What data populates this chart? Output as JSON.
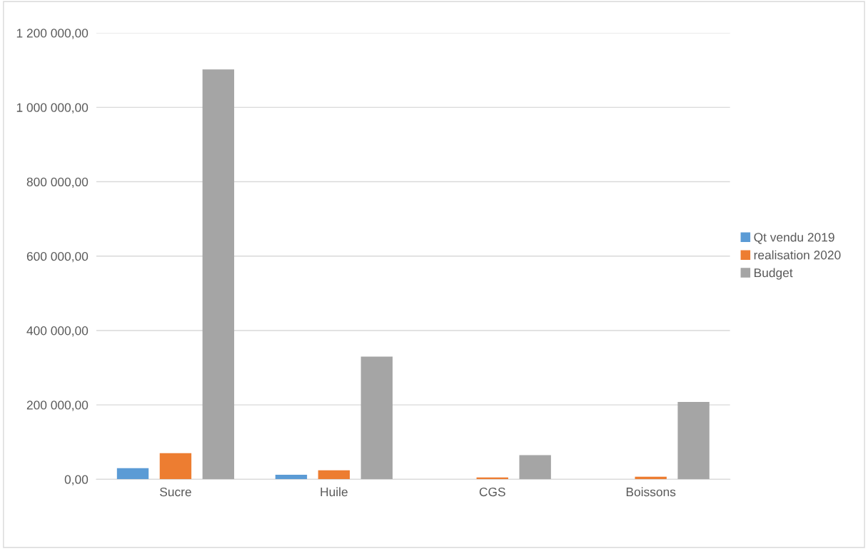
{
  "chart_data": {
    "type": "bar",
    "categories": [
      "Sucre",
      "Huile",
      "CGS",
      "Boissons"
    ],
    "series": [
      {
        "name": "Qt vendu 2019",
        "color": "#5b9bd5",
        "values": [
          30000,
          12000,
          0,
          0
        ]
      },
      {
        "name": "realisation 2020",
        "color": "#ed7d31",
        "values": [
          70000,
          24000,
          5000,
          7000
        ]
      },
      {
        "name": "Budget",
        "color": "#a5a5a5",
        "values": [
          1102000,
          330000,
          65000,
          208000
        ]
      }
    ],
    "ylim": [
      0,
      1200000
    ],
    "yticks": [
      {
        "value": 0,
        "label": "0,00"
      },
      {
        "value": 200000,
        "label": "200 000,00"
      },
      {
        "value": 400000,
        "label": "400 000,00"
      },
      {
        "value": 600000,
        "label": "600 000,00"
      },
      {
        "value": 800000,
        "label": "800 000,00"
      },
      {
        "value": 1000000,
        "label": "1 000 000,00"
      },
      {
        "value": 1200000,
        "label": "1 200 000,00"
      }
    ],
    "grid": "y",
    "legend": "right"
  }
}
